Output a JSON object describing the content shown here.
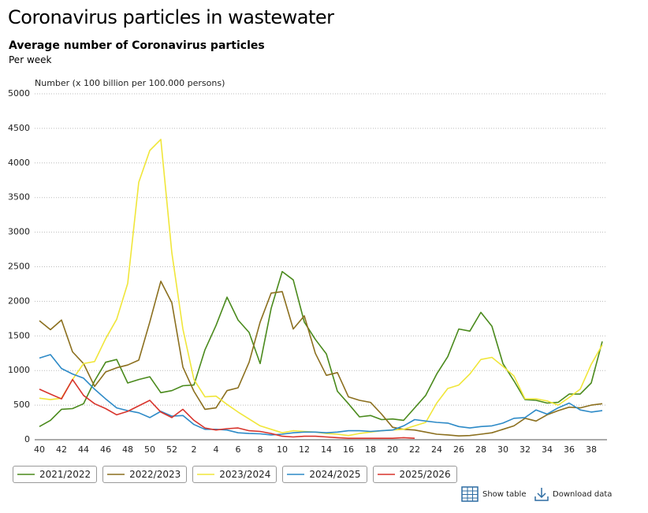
{
  "heading": "Coronavirus particles in wastewater",
  "controls": [
    "Show table",
    "Download data"
  ],
  "chart_data": {
    "type": "line",
    "title": "Average number of Coronavirus particles",
    "subtitle": "Per week",
    "y_label": "Number (x 100 billion per 100.000 persons)",
    "categories": [
      40,
      null,
      42,
      null,
      44,
      null,
      46,
      null,
      48,
      null,
      50,
      null,
      52,
      null,
      2,
      null,
      4,
      null,
      6,
      null,
      8,
      null,
      10,
      null,
      12,
      null,
      14,
      null,
      16,
      null,
      18,
      null,
      20,
      null,
      22,
      null,
      24,
      null,
      26,
      null,
      28,
      null,
      30,
      null,
      32,
      null,
      34,
      null,
      36,
      null,
      38,
      null
    ],
    "ylim": [
      0,
      5000
    ],
    "yticks": [
      0,
      500,
      1000,
      1500,
      2000,
      2500,
      3000,
      3500,
      4000,
      4500,
      5000
    ],
    "grid": true,
    "legend": "bottom",
    "series": [
      {
        "name": "2021/2022",
        "color": "#4a8a1c",
        "values": [
          190,
          280,
          440,
          450,
          520,
          850,
          1120,
          1160,
          820,
          870,
          910,
          680,
          710,
          780,
          790,
          1300,
          1650,
          2060,
          1730,
          1550,
          1100,
          1900,
          2430,
          2310,
          1700,
          1450,
          1240,
          700,
          520,
          330,
          350,
          290,
          300,
          280,
          460,
          640,
          950,
          1200,
          1600,
          1570,
          1840,
          1640,
          1100,
          850,
          580,
          570,
          530,
          540,
          660,
          660,
          820,
          1420
        ]
      },
      {
        "name": "2022/2023",
        "color": "#8b6f1e",
        "values": [
          1720,
          1590,
          1730,
          1270,
          1100,
          770,
          980,
          1040,
          1080,
          1150,
          1700,
          2290,
          1980,
          1050,
          700,
          440,
          460,
          710,
          750,
          1120,
          1700,
          2120,
          2140,
          1600,
          1790,
          1250,
          930,
          970,
          620,
          570,
          540,
          370,
          180,
          150,
          140,
          110,
          80,
          70,
          55,
          60,
          80,
          100,
          150,
          200,
          310,
          270,
          360,
          420,
          470,
          460,
          500,
          520
        ]
      },
      {
        "name": "2023/2024",
        "color": "#f0e63a",
        "values": [
          600,
          580,
          600,
          870,
          1100,
          1130,
          1460,
          1740,
          2260,
          3720,
          4180,
          4340,
          2700,
          1600,
          870,
          620,
          630,
          510,
          400,
          300,
          200,
          150,
          100,
          130,
          120,
          110,
          90,
          80,
          60,
          90,
          110,
          130,
          140,
          150,
          200,
          250,
          530,
          740,
          790,
          950,
          1160,
          1190,
          1060,
          920,
          590,
          590,
          560,
          500,
          610,
          730,
          1090,
          1370
        ]
      },
      {
        "name": "2024/2025",
        "color": "#2d8ac7",
        "values": [
          1180,
          1230,
          1030,
          950,
          890,
          730,
          590,
          460,
          420,
          390,
          320,
          410,
          340,
          350,
          220,
          150,
          150,
          140,
          100,
          90,
          85,
          70,
          80,
          100,
          110,
          110,
          100,
          110,
          130,
          130,
          120,
          130,
          140,
          200,
          290,
          270,
          250,
          240,
          190,
          170,
          190,
          200,
          240,
          310,
          320,
          430,
          370,
          460,
          530,
          430,
          400,
          420
        ]
      },
      {
        "name": "2025/2026",
        "color": "#d8342c",
        "values": [
          730,
          660,
          590,
          870,
          640,
          520,
          450,
          360,
          410,
          490,
          570,
          400,
          320,
          440,
          280,
          170,
          140,
          160,
          170,
          130,
          120,
          90,
          50,
          40,
          50,
          50,
          40,
          30,
          20,
          20,
          20,
          20,
          20,
          30,
          20,
          null,
          null,
          null,
          null,
          null,
          null,
          null,
          null,
          null,
          null,
          null,
          null,
          null,
          null,
          null,
          null,
          null
        ]
      }
    ]
  }
}
